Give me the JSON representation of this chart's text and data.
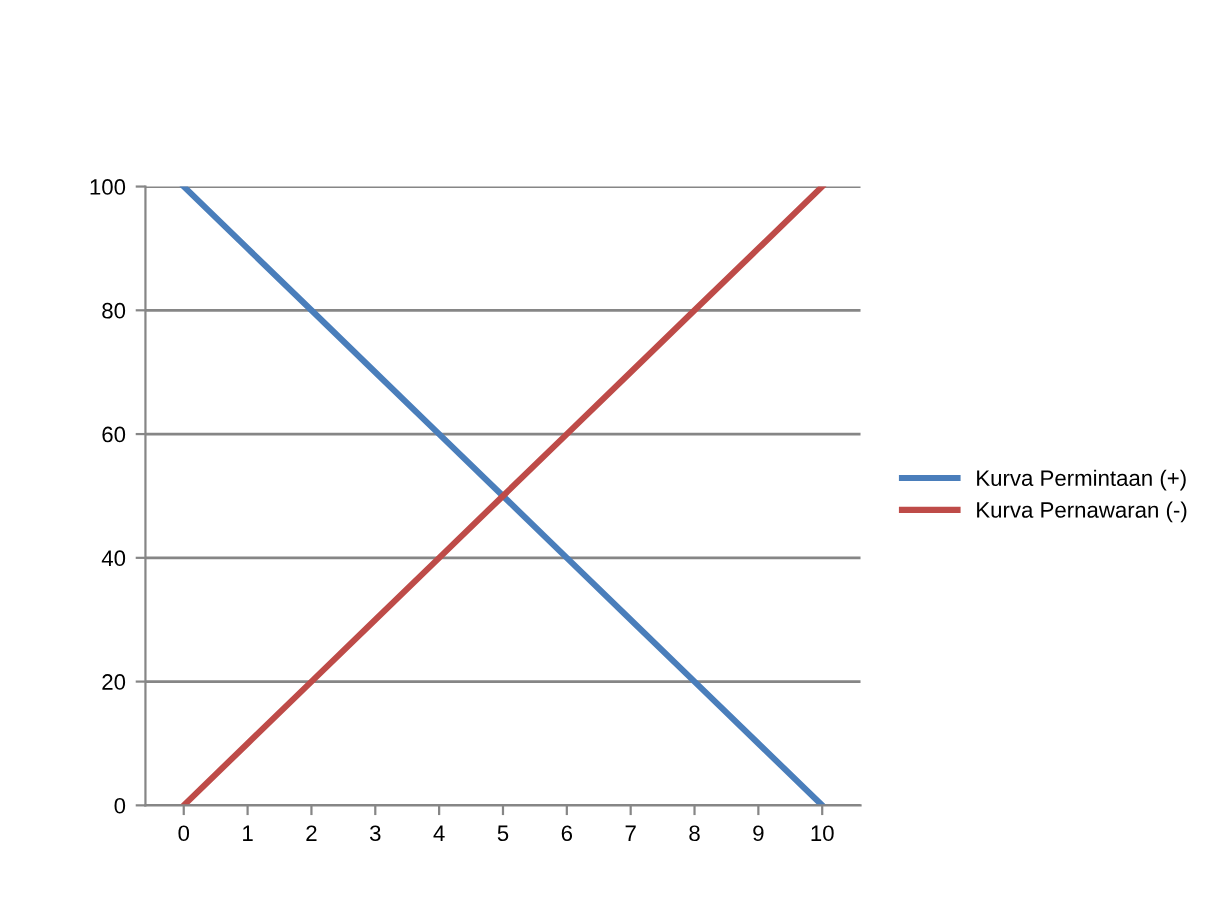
{
  "chart_data": {
    "type": "line",
    "categories": [
      "0",
      "1",
      "2",
      "3",
      "4",
      "5",
      "6",
      "7",
      "8",
      "9",
      "10"
    ],
    "series": [
      {
        "name": "Kurva Permintaan (+)",
        "color": "#4a7ebb",
        "values": [
          100,
          90,
          80,
          70,
          60,
          50,
          40,
          30,
          20,
          10,
          0
        ]
      },
      {
        "name": "Kurva Pernawaran (-)",
        "color": "#be4b48",
        "values": [
          0,
          10,
          20,
          30,
          40,
          50,
          60,
          70,
          80,
          90,
          100
        ]
      }
    ],
    "ylim": [
      0,
      100
    ],
    "yticks": [
      0,
      20,
      40,
      60,
      80,
      100
    ],
    "grid": "y",
    "legend": "right",
    "marker": "none",
    "line_style": "solid"
  }
}
